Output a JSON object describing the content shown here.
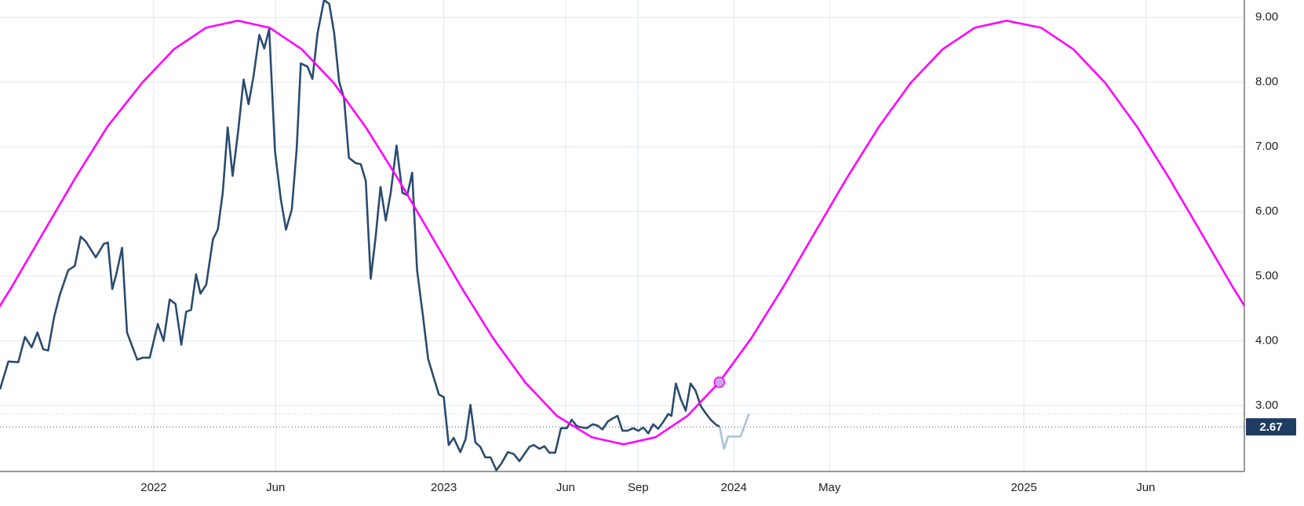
{
  "chart_data": {
    "type": "line",
    "xlim": [
      2021.47,
      2025.76
    ],
    "xticks": [
      {
        "value": 2022,
        "label": "2022"
      },
      {
        "value": 2022.42,
        "label": "Jun"
      },
      {
        "value": 2023,
        "label": "2023"
      },
      {
        "value": 2023.42,
        "label": "Jun"
      },
      {
        "value": 2023.67,
        "label": "Sep"
      },
      {
        "value": 2024,
        "label": "2024"
      },
      {
        "value": 2024.33,
        "label": "May"
      },
      {
        "value": 2025,
        "label": "2025"
      },
      {
        "value": 2025.42,
        "label": "Jun"
      }
    ],
    "ylim": [
      1.98,
      9.27
    ],
    "yticks": [
      {
        "value": 3,
        "label": "3.00"
      },
      {
        "value": 4,
        "label": "4.00"
      },
      {
        "value": 5,
        "label": "5.00"
      },
      {
        "value": 6,
        "label": "6.00"
      },
      {
        "value": 7,
        "label": "7.00"
      },
      {
        "value": 8,
        "label": "8.00"
      },
      {
        "value": 9,
        "label": "9.00"
      }
    ],
    "grid": true,
    "series": [
      {
        "color": "#2b4c6f",
        "x": [
          2021.47,
          2021.499,
          2021.533,
          2021.556,
          2021.579,
          2021.599,
          2021.619,
          2021.636,
          2021.656,
          2021.676,
          2021.705,
          2021.728,
          2021.748,
          2021.765,
          2021.8,
          2021.828,
          2021.842,
          2021.857,
          2021.871,
          2021.891,
          2021.908,
          2021.943,
          2021.963,
          2021.986,
          2022.014,
          2022.034,
          2022.055,
          2022.075,
          2022.095,
          2022.112,
          2022.129,
          2022.146,
          2022.161,
          2022.181,
          2022.204,
          2022.221,
          2022.238,
          2022.255,
          2022.272,
          2022.292,
          2022.31,
          2022.327,
          2022.344,
          2022.364,
          2022.381,
          2022.398,
          2022.418,
          2022.438,
          2022.456,
          2022.476,
          2022.493,
          2022.507,
          2022.53,
          2022.547,
          2022.565,
          2022.587,
          2022.605,
          2022.622,
          2022.639,
          2022.656,
          2022.673,
          2022.696,
          2022.714,
          2022.731,
          2022.748,
          2022.765,
          2022.782,
          2022.8,
          2022.817,
          2022.837,
          2022.857,
          2022.874,
          2022.891,
          2022.908,
          2022.928,
          2022.946,
          2022.966,
          2022.983,
          2023.0,
          2023.017,
          2023.034,
          2023.057,
          2023.075,
          2023.092,
          2023.109,
          2023.126,
          2023.143,
          2023.161,
          2023.181,
          2023.198,
          2023.221,
          2023.241,
          2023.261,
          2023.278,
          2023.295,
          2023.31,
          2023.33,
          2023.347,
          2023.364,
          2023.384,
          2023.404,
          2023.424,
          2023.441,
          2023.459,
          2023.476,
          2023.493,
          2023.513,
          2023.53,
          2023.547,
          2023.565,
          2023.582,
          2023.599,
          2023.616,
          2023.633,
          2023.653,
          2023.671,
          2023.688,
          2023.705,
          2023.722,
          2023.739,
          2023.757,
          2023.774,
          2023.785,
          2023.8,
          2023.817,
          2023.834,
          2023.851,
          2023.868,
          2023.886,
          2023.903,
          2023.92,
          2023.937,
          2023.951
        ],
        "values": [
          3.25,
          3.68,
          3.67,
          4.06,
          3.9,
          4.13,
          3.87,
          3.85,
          4.36,
          4.71,
          5.09,
          5.16,
          5.61,
          5.54,
          5.29,
          5.5,
          5.52,
          4.8,
          5.03,
          5.44,
          4.13,
          3.71,
          3.74,
          3.74,
          4.26,
          4.0,
          4.64,
          4.57,
          3.94,
          4.45,
          4.48,
          5.03,
          4.73,
          4.87,
          5.57,
          5.72,
          6.29,
          7.3,
          6.55,
          7.28,
          8.04,
          7.66,
          8.09,
          8.73,
          8.52,
          8.82,
          6.93,
          6.19,
          5.72,
          6.03,
          6.98,
          8.29,
          8.24,
          8.05,
          8.76,
          9.27,
          9.21,
          8.76,
          8.01,
          7.75,
          6.83,
          6.75,
          6.73,
          6.47,
          4.96,
          5.61,
          6.38,
          5.86,
          6.29,
          7.02,
          6.29,
          6.25,
          6.6,
          5.09,
          4.39,
          3.72,
          3.42,
          3.17,
          3.13,
          2.39,
          2.5,
          2.28,
          2.48,
          3.01,
          2.43,
          2.36,
          2.2,
          2.2,
          2.0,
          2.1,
          2.28,
          2.25,
          2.14,
          2.25,
          2.36,
          2.39,
          2.33,
          2.37,
          2.27,
          2.27,
          2.65,
          2.65,
          2.78,
          2.68,
          2.66,
          2.65,
          2.71,
          2.69,
          2.63,
          2.75,
          2.8,
          2.84,
          2.61,
          2.61,
          2.65,
          2.61,
          2.66,
          2.57,
          2.71,
          2.64,
          2.75,
          2.87,
          2.84,
          3.34,
          3.1,
          2.92,
          3.34,
          3.23,
          2.99,
          2.88,
          2.78,
          2.71,
          2.67
        ]
      },
      {
        "color": "#a9c2dc",
        "x": [
          2023.951,
          2023.966,
          2023.98,
          2024.023,
          2024.052
        ],
        "values": [
          2.67,
          2.33,
          2.52,
          2.52,
          2.87
        ]
      },
      {
        "color": "#ff00ff",
        "x": [
          2021.4,
          2021.51,
          2021.62,
          2021.73,
          2021.84,
          2021.96,
          2022.07,
          2022.18,
          2022.29,
          2022.4,
          2022.51,
          2022.62,
          2022.73,
          2022.84,
          2022.95,
          2023.06,
          2023.17,
          2023.28,
          2023.39,
          2023.51,
          2023.62,
          2023.73,
          2023.84,
          2023.95,
          2024.06,
          2024.17,
          2024.28,
          2024.39,
          2024.5,
          2024.61,
          2024.72,
          2024.83,
          2024.94,
          2025.06,
          2025.17,
          2025.28,
          2025.39,
          2025.5,
          2025.61,
          2025.72,
          2025.83
        ],
        "values": [
          4.04,
          4.83,
          5.68,
          6.52,
          7.31,
          7.99,
          8.51,
          8.84,
          8.95,
          8.84,
          8.51,
          7.99,
          7.31,
          6.52,
          5.68,
          4.83,
          4.04,
          3.36,
          2.84,
          2.51,
          2.4,
          2.51,
          2.84,
          3.36,
          4.04,
          4.83,
          5.68,
          6.52,
          7.31,
          7.99,
          8.51,
          8.84,
          8.95,
          8.84,
          8.51,
          7.99,
          7.31,
          6.52,
          5.68,
          4.83,
          4.04
        ]
      }
    ],
    "marker": {
      "x": 2023.95,
      "y": 3.36
    }
  }
}
